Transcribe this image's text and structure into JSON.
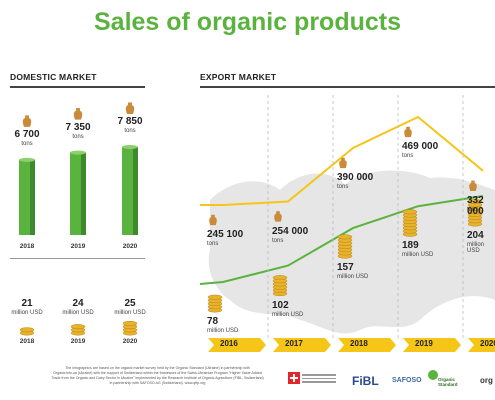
{
  "title": "Sales of organic products",
  "domestic": {
    "heading": "DOMESTIC MARKET",
    "bars": [
      {
        "year": "2018",
        "value_label": "6 700",
        "unit": "tons",
        "value": 6700
      },
      {
        "year": "2019",
        "value_label": "7 350",
        "unit": "tons",
        "value": 7350
      },
      {
        "year": "2020",
        "value_label": "7 850",
        "unit": "tons",
        "value": 7850
      }
    ],
    "money": [
      {
        "year": "2018",
        "value": "21",
        "unit": "million USD"
      },
      {
        "year": "2019",
        "value": "24",
        "unit": "million USD"
      },
      {
        "year": "2020",
        "value": "25",
        "unit": "million USD"
      }
    ]
  },
  "export": {
    "heading": "EXPORT MARKET",
    "years": [
      "2016",
      "2017",
      "2018",
      "2019",
      "2020"
    ],
    "tons": [
      {
        "value": "245 100",
        "unit": "tons"
      },
      {
        "value": "254 000",
        "unit": "tons"
      },
      {
        "value": "390 000",
        "unit": "tons"
      },
      {
        "value": "469 000",
        "unit": "tons"
      },
      {
        "value": "332 000",
        "unit": "tons"
      }
    ],
    "usd": [
      {
        "value": "78",
        "unit": "million USD"
      },
      {
        "value": "102",
        "unit": "million USD"
      },
      {
        "value": "157",
        "unit": "million USD"
      },
      {
        "value": "189",
        "unit": "million USD"
      },
      {
        "value": "204",
        "unit": "million USD"
      }
    ]
  },
  "chart_data": [
    {
      "type": "bar",
      "categories": [
        "2018",
        "2019",
        "2020"
      ],
      "values": [
        6700,
        7350,
        7850
      ],
      "title": "DOMESTIC MARKET"
    },
    {
      "type": "line",
      "x": [
        "2016",
        "2017",
        "2018",
        "2019",
        "2020"
      ],
      "title": "EXPORT MARKET",
      "series": [
        {
          "name": "tons",
          "values": [
            245100,
            254000,
            390000,
            469000,
            332000
          ]
        },
        {
          "name": "million USD",
          "values": [
            78,
            102,
            157,
            189,
            204
          ]
        }
      ]
    }
  ],
  "colors": {
    "green": "#5bb33f",
    "green_dark": "#3d8a2a",
    "yellow": "#f5c518",
    "map": "#e6e6e6",
    "bag": "#c98a3a"
  },
  "footer": {
    "line1": "The infographics are based on the organic market survey held by the Organic Standard (Ukraine) in partnership with",
    "line2": "OrganicInfo.ua (Ukraine) with the support of Switzerland within the framework of the Swiss-Ukrainian Program \"Higher Value Added",
    "line3": "Trade from the Organic and Dairy Sector in Ukraine\" implemented by the Research Institute of Organic Agriculture (FiBL, Switzerland)",
    "line4": "in partnership with SAFOSO AG (Switzerland). www.qftp.org"
  },
  "logos": {
    "fibl": "FiBL",
    "safoso": "SAFOSO",
    "os": "Organic Standard",
    "extra": "org"
  }
}
